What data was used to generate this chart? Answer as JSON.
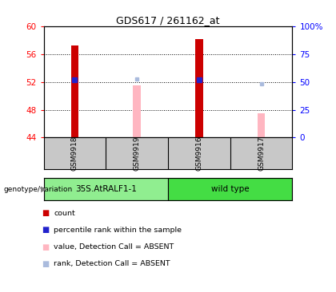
{
  "title": "GDS617 / 261162_at",
  "samples": [
    "GSM9918",
    "GSM9919",
    "GSM9916",
    "GSM9917"
  ],
  "ylim_left": [
    44,
    60
  ],
  "ylim_right": [
    0,
    100
  ],
  "yticks_left": [
    44,
    48,
    52,
    56,
    60
  ],
  "yticks_right": [
    0,
    25,
    50,
    75,
    100
  ],
  "ytick_labels_right": [
    "0",
    "25",
    "50",
    "75",
    "100%"
  ],
  "count_bars": [
    57.2,
    null,
    58.2,
    null
  ],
  "percentile_rank_dots": [
    52.3,
    null,
    52.3,
    null
  ],
  "absent_value_bars": [
    null,
    51.5,
    null,
    47.5
  ],
  "absent_rank_dots": [
    null,
    52.4,
    null,
    51.7
  ],
  "bar_bottom": 44,
  "bar_width": 0.12,
  "count_color": "#CC0000",
  "percentile_color": "#2222CC",
  "absent_value_color": "#FFB6C1",
  "absent_rank_color": "#AABBDD",
  "sample_area_bg": "#C8C8C8",
  "group1_color": "#90EE90",
  "group2_color": "#44DD44",
  "legend_items": [
    {
      "color": "#CC0000",
      "label": "count"
    },
    {
      "color": "#2222CC",
      "label": "percentile rank within the sample"
    },
    {
      "color": "#FFB6C1",
      "label": "value, Detection Call = ABSENT"
    },
    {
      "color": "#AABBDD",
      "label": "rank, Detection Call = ABSENT"
    }
  ]
}
